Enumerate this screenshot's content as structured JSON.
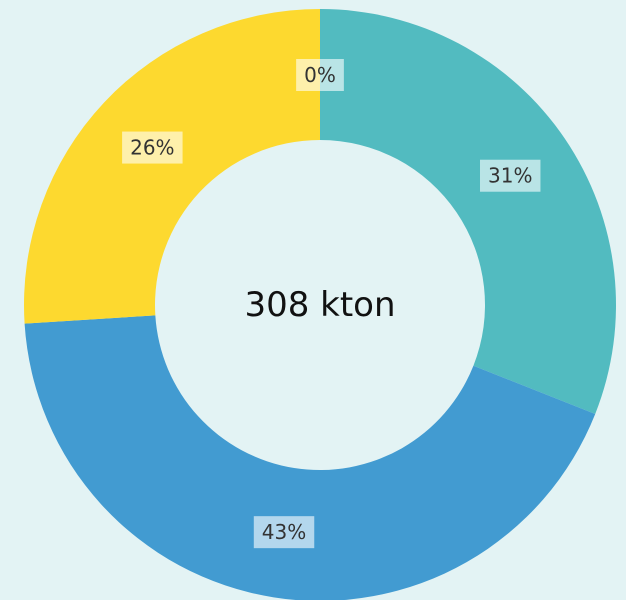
{
  "chart_data": {
    "type": "donut",
    "center_label": "308 kton",
    "values": [
      31,
      43,
      26,
      0
    ],
    "value_labels": [
      "31%",
      "43%",
      "26%",
      "0%"
    ],
    "colors": [
      "#52bbc0",
      "#429bd1",
      "#fdd92f",
      "#f2a65a"
    ]
  }
}
